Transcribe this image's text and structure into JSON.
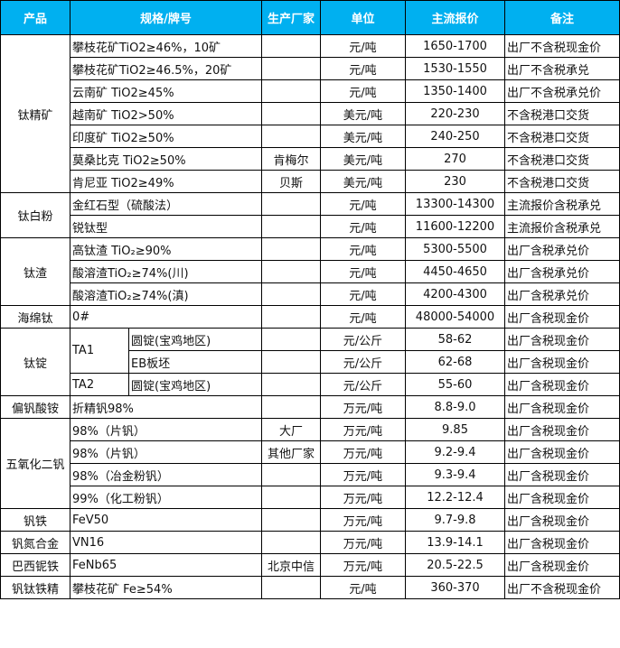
{
  "header": {
    "product": "产品",
    "spec": "规格/牌号",
    "maker": "生产厂家",
    "unit": "单位",
    "price": "主流报价",
    "note": "备注"
  },
  "colors": {
    "header_bg": "#00b0f0",
    "header_text": "#ffffff"
  },
  "groups": [
    {
      "product": "钛精矿",
      "rows": [
        {
          "spec": "攀枝花矿TiO2≥46%，10矿",
          "maker": "",
          "unit": "元/吨",
          "price": "1650-1700",
          "note": "出厂不含税现金价"
        },
        {
          "spec": "攀枝花矿TiO2≥46.5%，20矿",
          "maker": "",
          "unit": "元/吨",
          "price": "1530-1550",
          "note": "出厂不含税承兑"
        },
        {
          "spec": "云南矿 TiO2≥45%",
          "maker": "",
          "unit": "元/吨",
          "price": "1350-1400",
          "note": "出厂不含税承兑价"
        },
        {
          "spec": "越南矿 TiO2>50%",
          "maker": "",
          "unit": "美元/吨",
          "price": "220-230",
          "note": "不含税港口交货"
        },
        {
          "spec": "印度矿 TiO2≥50%",
          "maker": "",
          "unit": "美元/吨",
          "price": "240-250",
          "note": "不含税港口交货"
        },
        {
          "spec": "莫桑比克 TiO2≥50%",
          "maker": "肯梅尔",
          "unit": "美元/吨",
          "price": "270",
          "note": "不含税港口交货"
        },
        {
          "spec": "肯尼亚 TiO2≥49%",
          "maker": "贝斯",
          "unit": "美元/吨",
          "price": "230",
          "note": "不含税港口交货"
        }
      ]
    },
    {
      "product": "钛白粉",
      "rows": [
        {
          "spec": "金红石型（硫酸法）",
          "maker": "",
          "unit": "元/吨",
          "price": "13300-14300",
          "note": "主流报价含税承兑"
        },
        {
          "spec": "锐钛型",
          "maker": "",
          "unit": "元/吨",
          "price": "11600-12200",
          "note": "主流报价含税承兑"
        }
      ]
    },
    {
      "product": "钛渣",
      "rows": [
        {
          "spec": "高钛渣 TiO₂≥90%",
          "maker": "",
          "unit": "元/吨",
          "price": "5300-5500",
          "note": "出厂含税承兑价"
        },
        {
          "spec": "酸溶渣TiO₂≥74%(川)",
          "maker": "",
          "unit": "元/吨",
          "price": "4450-4650",
          "note": "出厂含税承兑价"
        },
        {
          "spec": "酸溶渣TiO₂≥74%(滇)",
          "maker": "",
          "unit": "元/吨",
          "price": "4200-4300",
          "note": "出厂含税承兑价"
        }
      ]
    },
    {
      "product": "海绵钛",
      "rows": [
        {
          "spec": "0#",
          "maker": "",
          "unit": "元/吨",
          "price": "48000-54000",
          "note": "出厂含税现金价"
        }
      ]
    },
    {
      "product": "钛锭",
      "rows": [
        {
          "grade": "TA1",
          "grade_span": 2,
          "spec": "圆锭(宝鸡地区)",
          "unit": "元/公斤",
          "price": "58-62",
          "note": "出厂含税现金价"
        },
        {
          "spec": "EB板坯",
          "unit": "元/公斤",
          "price": "62-68",
          "note": "出厂含税现金价"
        },
        {
          "grade": "TA2",
          "grade_span": 1,
          "spec": "圆锭(宝鸡地区)",
          "unit": "元/公斤",
          "price": "55-60",
          "note": "出厂含税现金价"
        }
      ]
    },
    {
      "product": "偏钒酸铵",
      "rows": [
        {
          "spec": "折精钒98%",
          "maker": "",
          "unit": "万元/吨",
          "price": "8.8-9.0",
          "note": "出厂含税现金价"
        }
      ]
    },
    {
      "product": "五氧化二钒",
      "rows": [
        {
          "spec": "98%（片钒）",
          "maker": "大厂",
          "unit": "万元/吨",
          "price": "9.85",
          "note": "出厂含税现金价"
        },
        {
          "spec": "98%（片钒）",
          "maker": "其他厂家",
          "unit": "万元/吨",
          "price": "9.2-9.4",
          "note": "出厂含税现金价"
        },
        {
          "spec": "98%（冶金粉钒）",
          "maker": "",
          "unit": "万元/吨",
          "price": "9.3-9.4",
          "note": "出厂含税现金价"
        },
        {
          "spec": "99%（化工粉钒）",
          "maker": "",
          "unit": "万元/吨",
          "price": "12.2-12.4",
          "note": "出厂含税现金价"
        }
      ]
    },
    {
      "product": "钒铁",
      "rows": [
        {
          "spec": "FeV50",
          "maker": "",
          "unit": "万元/吨",
          "price": "9.7-9.8",
          "note": "出厂含税现金价"
        }
      ]
    },
    {
      "product": "钒氮合金",
      "rows": [
        {
          "spec": "VN16",
          "maker": "",
          "unit": "万元/吨",
          "price": "13.9-14.1",
          "note": "出厂含税现金价"
        }
      ]
    },
    {
      "product": "巴西铌铁",
      "rows": [
        {
          "spec": "FeNb65",
          "maker": "北京中信",
          "unit": "万元/吨",
          "price": "20.5-22.5",
          "note": "出厂含税现金价"
        }
      ]
    },
    {
      "product": "钒钛铁精",
      "rows": [
        {
          "spec": "攀枝花矿 Fe≥54%",
          "maker": "",
          "unit": "元/吨",
          "price": "360-370",
          "note": "出厂不含税现金价"
        }
      ]
    }
  ]
}
